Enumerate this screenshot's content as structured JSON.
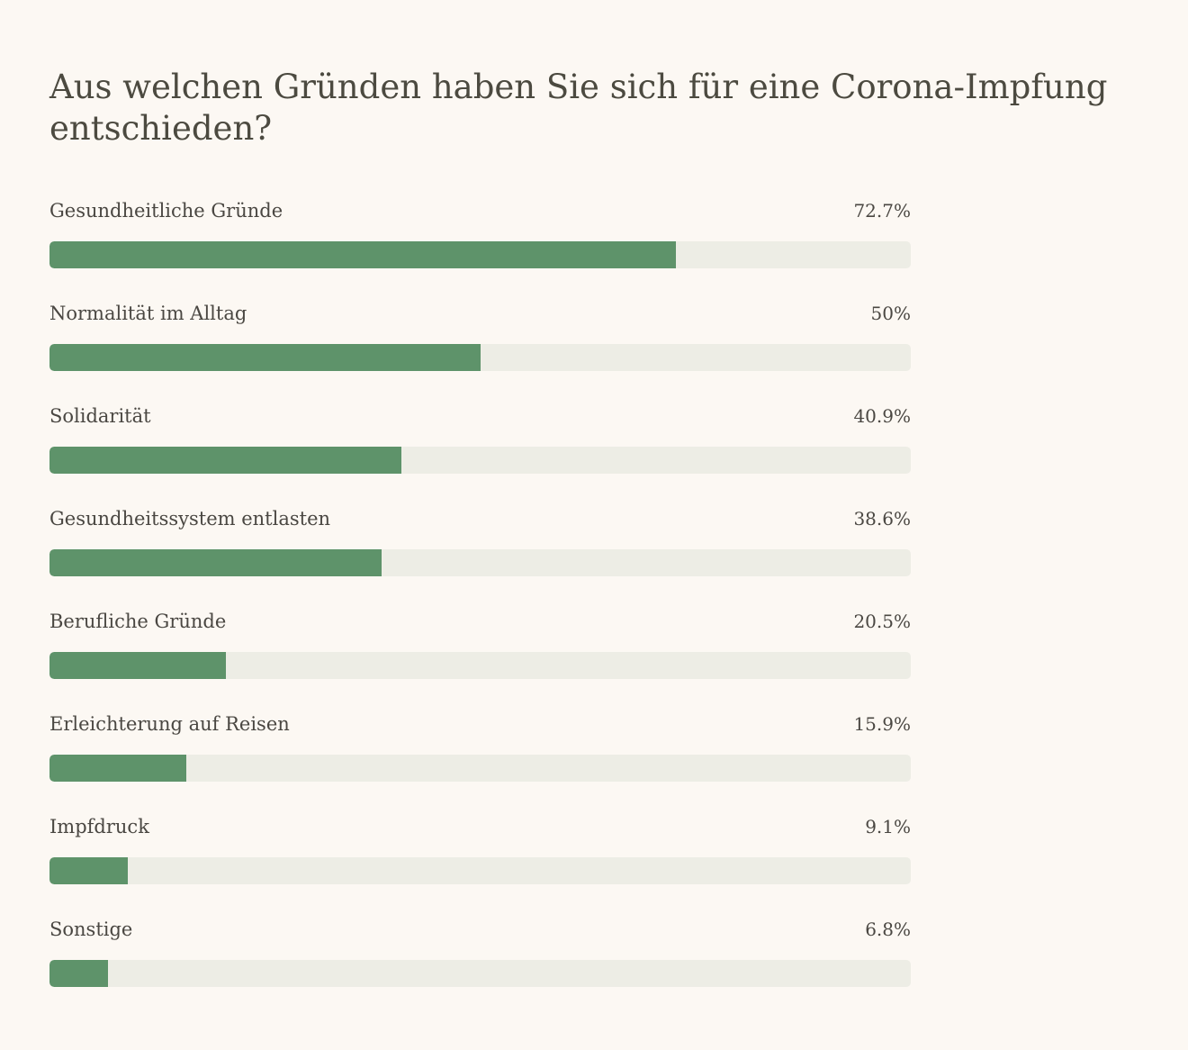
{
  "chart_data": {
    "type": "bar",
    "orientation": "horizontal",
    "title": "Aus welchen Gründen haben Sie sich für eine Corona-Impfung entschieden?",
    "categories": [
      "Gesundheitliche Gründe",
      "Normalität im Alltag",
      "Solidarität",
      "Gesundheitssystem entlasten",
      "Berufliche Gründe",
      "Erleichterung auf Reisen",
      "Impfdruck",
      "Sonstige"
    ],
    "values": [
      72.7,
      50,
      40.9,
      38.6,
      20.5,
      15.9,
      9.1,
      6.8
    ],
    "labels": [
      "72.7%",
      "50%",
      "40.9%",
      "38.6%",
      "20.5%",
      "15.9%",
      "9.1%",
      "6.8%"
    ],
    "xlim": [
      0,
      100
    ],
    "unit": "%",
    "grid": false,
    "colors": {
      "bar": "#5e936a",
      "track": "#edede5",
      "background": "#fcf8f3"
    }
  }
}
